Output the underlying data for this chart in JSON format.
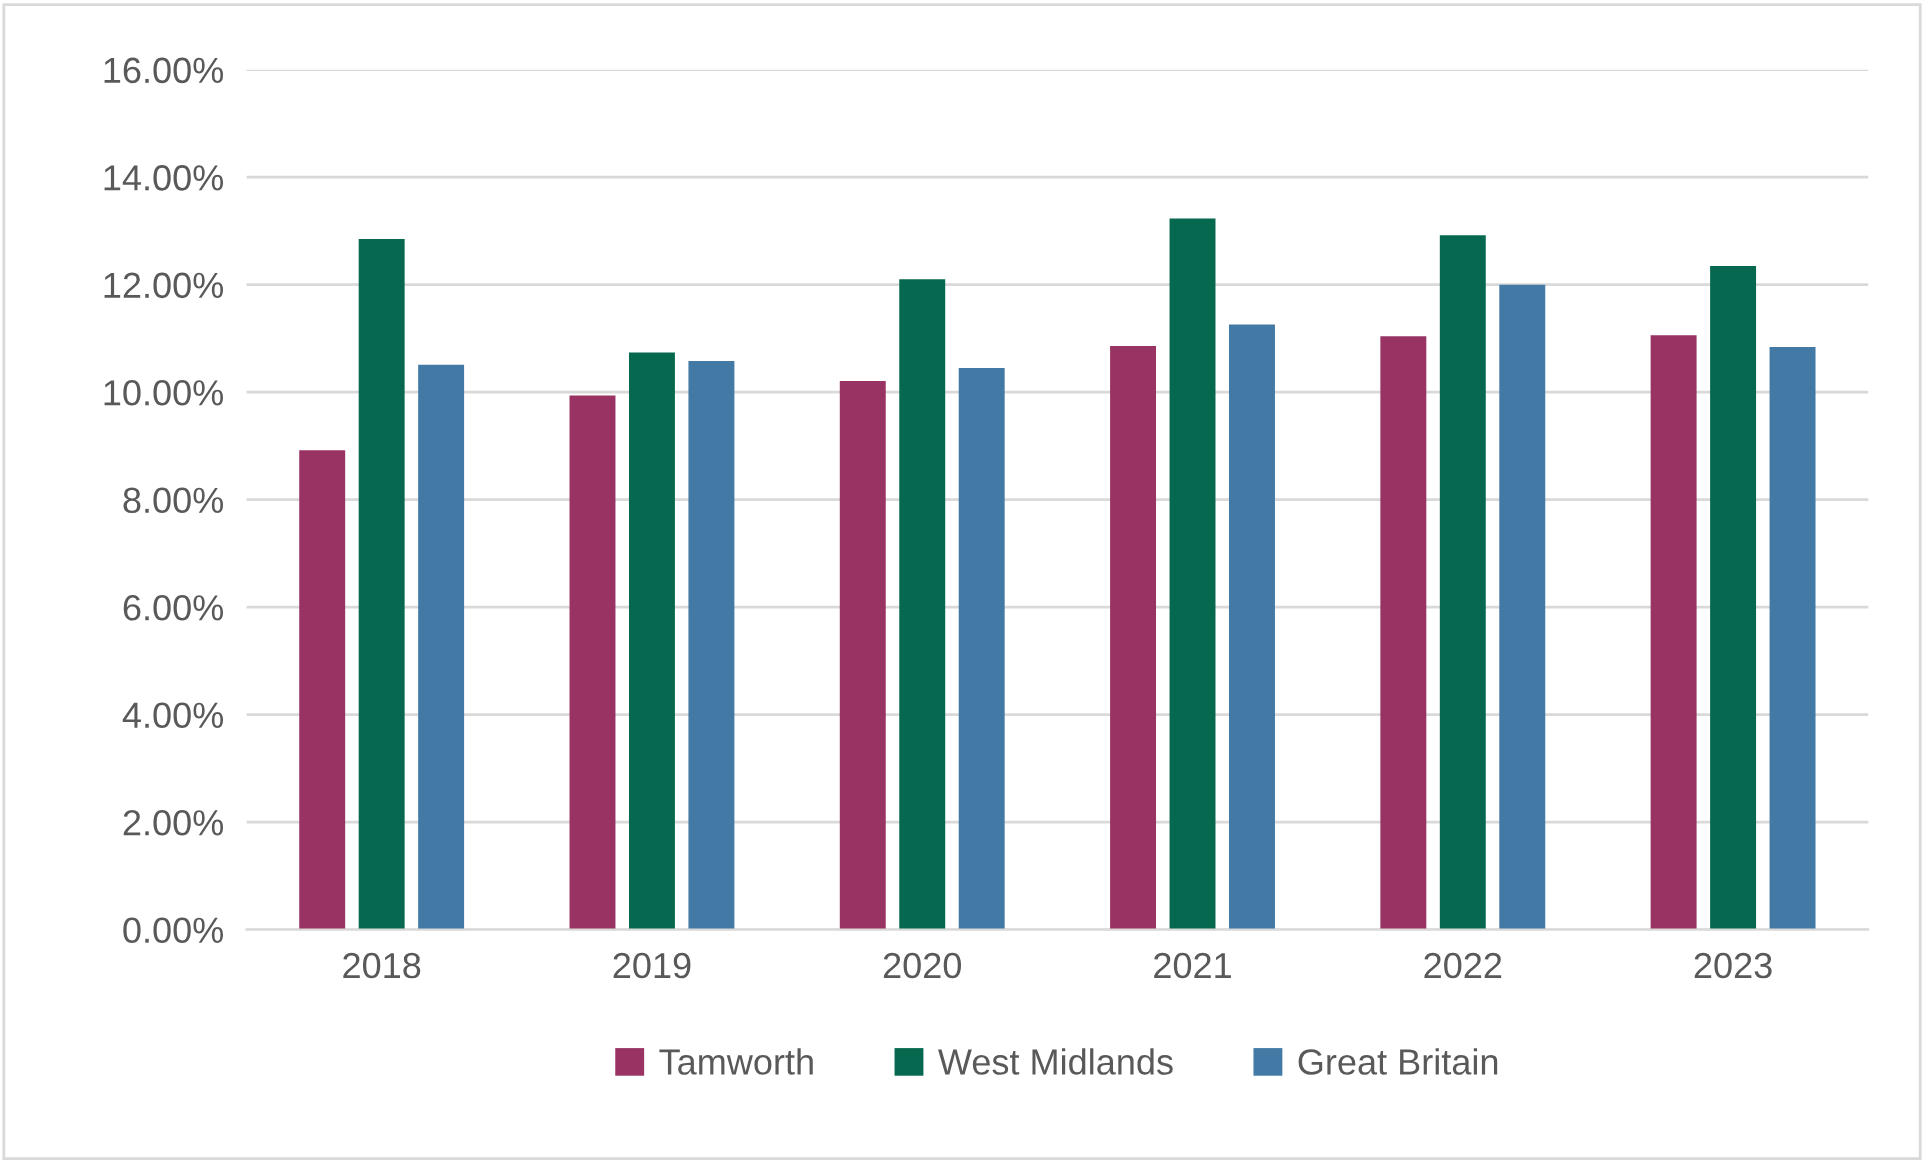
{
  "chart_data": {
    "type": "bar",
    "categories": [
      "2018",
      "2019",
      "2020",
      "2021",
      "2022",
      "2023"
    ],
    "series": [
      {
        "name": "Tamworth",
        "color": "#983363",
        "values": [
          8.92,
          9.94,
          10.21,
          10.86,
          11.04,
          11.06
        ]
      },
      {
        "name": "West Midlands",
        "color": "#06694f",
        "values": [
          12.85,
          10.74,
          12.1,
          13.23,
          12.92,
          12.35
        ]
      },
      {
        "name": "Great Britain",
        "color": "#4279a5",
        "values": [
          10.51,
          10.58,
          10.45,
          11.26,
          12.0,
          10.84
        ]
      }
    ],
    "ylim": [
      0,
      16
    ],
    "yticks": [
      {
        "value": 0,
        "label": "0.00%"
      },
      {
        "value": 2,
        "label": "2.00%"
      },
      {
        "value": 4,
        "label": "4.00%"
      },
      {
        "value": 6,
        "label": "6.00%"
      },
      {
        "value": 8,
        "label": "8.00%"
      },
      {
        "value": 10,
        "label": "10.00%"
      },
      {
        "value": 12,
        "label": "12.00%"
      },
      {
        "value": 14,
        "label": "14.00%"
      },
      {
        "value": 16,
        "label": "16.00%"
      }
    ],
    "grid": "y",
    "legend": "bottom"
  }
}
